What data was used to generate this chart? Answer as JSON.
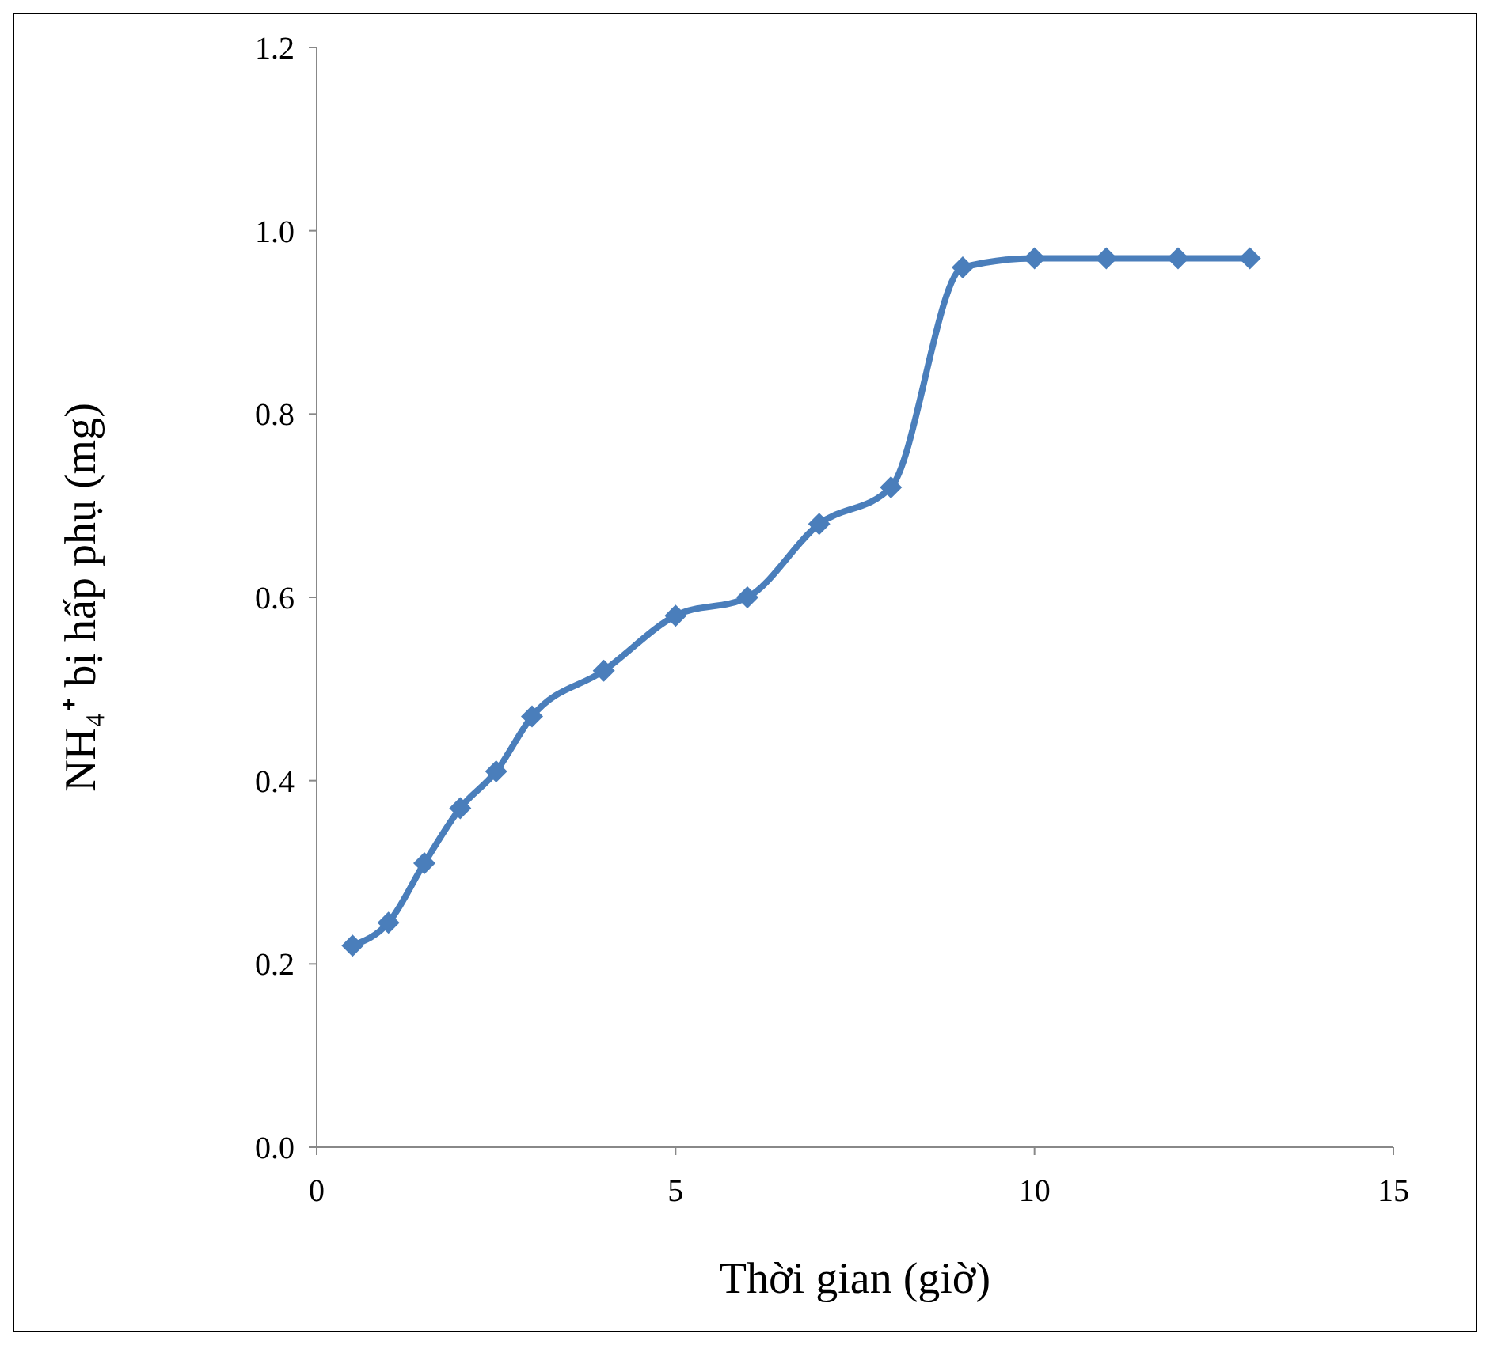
{
  "chart_data": {
    "type": "line",
    "xlabel": "Thời gian (giờ)",
    "ylabel": "NH₄⁺ bị hấp phụ (mg)",
    "x": [
      0.5,
      1,
      1.5,
      2,
      2.5,
      3,
      4,
      5,
      6,
      7,
      8,
      9,
      10,
      11,
      12,
      13
    ],
    "series": [
      {
        "color": "#4a7ebb",
        "values": [
          0.22,
          0.245,
          0.31,
          0.37,
          0.41,
          0.47,
          0.52,
          0.58,
          0.6,
          0.68,
          0.72,
          0.96,
          0.97,
          0.97,
          0.97,
          0.97
        ]
      }
    ],
    "xlim": [
      0,
      15
    ],
    "xticks": [
      0,
      5,
      10,
      15
    ],
    "ylim": [
      0,
      1.2
    ],
    "yticks": [
      {
        "value": 0,
        "label": "0.0"
      },
      {
        "value": 0.2,
        "label": "0.2"
      },
      {
        "value": 0.4,
        "label": "0.4"
      },
      {
        "value": 0.6,
        "label": "0.6"
      },
      {
        "value": 0.8,
        "label": "0.8"
      },
      {
        "value": 1,
        "label": "1.0"
      },
      {
        "value": 1.2,
        "label": "1.2"
      }
    ],
    "grid": false,
    "marker": "diamond",
    "line_style": "solid"
  }
}
